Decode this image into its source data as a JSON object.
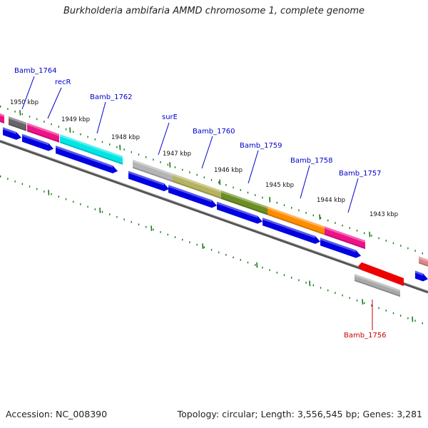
{
  "title": "Burkholderia ambifaria AMMD chromosome 1, complete genome",
  "footer": {
    "accession": "Accession: NC_008390",
    "topology": "Topology: circular; Length: 3,556,545 bp; Genes: 3,281"
  },
  "colors": {
    "gene_label": "#0000cc",
    "gene_label_alt": "#cc0000",
    "cds": "#0000e0",
    "backbone": "#808080",
    "tick": "#1a7a1a"
  },
  "kbp_labels": [
    "1950 kbp",
    "1949 kbp",
    "1948 kbp",
    "1947 kbp",
    "1946 kbp",
    "1945 kbp",
    "1944 kbp",
    "1943 kbp"
  ],
  "genes": [
    {
      "label": "Bamb_1764",
      "color": "#666666",
      "labelColor": "blue"
    },
    {
      "label": "recR",
      "color": "#ee1188",
      "labelColor": "blue"
    },
    {
      "label": "Bamb_1762",
      "color": "#00e6e6",
      "labelColor": "blue"
    },
    {
      "label": "surE",
      "color": "#b4b4b4",
      "labelColor": "blue"
    },
    {
      "label": "Bamb_1760",
      "color": "#b5b35f",
      "labelColor": "blue"
    },
    {
      "label": "Bamb_1759",
      "color": "#6b8e23",
      "labelColor": "blue"
    },
    {
      "label": "Bamb_1758",
      "color": "#ff8c00",
      "labelColor": "blue"
    },
    {
      "label": "Bamb_1757",
      "color": "#ee1188",
      "labelColor": "blue"
    },
    {
      "label": "Bamb_1756",
      "color": "#ee0000",
      "labelColor": "red"
    }
  ]
}
